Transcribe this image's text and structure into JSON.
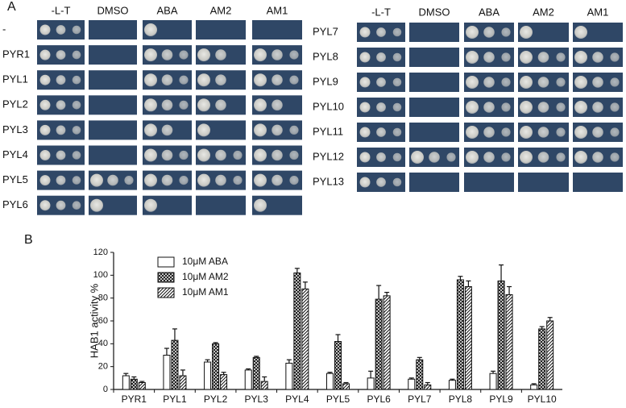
{
  "panel_a": {
    "label": "A",
    "left": {
      "columns": [
        "-L-T",
        "DMSO",
        "ABA",
        "AM2",
        "AM1"
      ],
      "rows": [
        "-",
        "PYR1",
        "PYL1",
        "PYL2",
        "PYL3",
        "PYL4",
        "PYL5",
        "PYL6"
      ]
    },
    "right": {
      "columns": [
        "-L-T",
        "DMSO",
        "ABA",
        "AM2",
        "AM1"
      ],
      "rows": [
        "PYL7",
        "PYL8",
        "PYL9",
        "PYL10",
        "PYL11",
        "PYL12",
        "PYL13"
      ]
    }
  },
  "chart_data": {
    "type": "bar",
    "label": "B",
    "ylabel": "HAB1 activity %",
    "categories": [
      "PYR1",
      "PYL1",
      "PYL2",
      "PYL3",
      "PYL4",
      "PYL5",
      "PYL6",
      "PYL7",
      "PYL8",
      "PYL9",
      "PYL10"
    ],
    "series": [
      {
        "name": "10μM ABA",
        "color": "#ffffff",
        "pattern": "solid",
        "values": [
          12,
          30,
          24,
          17,
          23,
          14,
          10,
          9,
          8,
          14,
          4
        ],
        "errors": [
          2,
          6,
          2,
          1,
          3,
          1,
          6,
          1,
          1,
          2,
          1
        ]
      },
      {
        "name": "10μM AM2",
        "color": "#ffffff",
        "pattern": "crosshatch",
        "values": [
          9,
          43,
          40,
          28,
          102,
          42,
          79,
          26,
          96,
          95,
          53
        ],
        "errors": [
          2,
          10,
          1,
          1,
          4,
          6,
          12,
          2,
          3,
          14,
          2
        ]
      },
      {
        "name": "10μM AM1",
        "color": "#ffffff",
        "pattern": "diagonal",
        "values": [
          6,
          12,
          13,
          7,
          88,
          5,
          82,
          4,
          90,
          83,
          60
        ],
        "errors": [
          1,
          5,
          2,
          4,
          6,
          1,
          3,
          2,
          5,
          7,
          3
        ]
      }
    ],
    "ylim": [
      0,
      120
    ],
    "yticks": [
      0,
      20,
      40,
      60,
      80,
      100,
      120
    ],
    "legend": "upper-left"
  }
}
